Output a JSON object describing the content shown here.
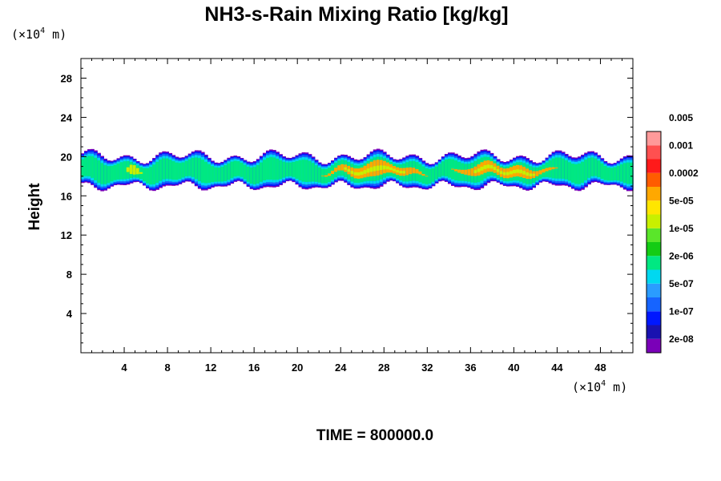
{
  "chart_data": {
    "type": "heatmap",
    "title": "NH3-s-Rain Mixing Ratio [kg/kg]",
    "xlabel": "",
    "ylabel": "Height",
    "x_unit": {
      "prefix": "(×10",
      "exp": "4",
      "suffix": " m)"
    },
    "y_unit": {
      "prefix": "(×10",
      "exp": "4",
      "suffix": " m)"
    },
    "xlim": [
      0,
      51
    ],
    "ylim": [
      0,
      30
    ],
    "x_ticks": [
      "4",
      "8",
      "12",
      "16",
      "20",
      "24",
      "28",
      "32",
      "36",
      "40",
      "44",
      "48"
    ],
    "x_tick_values": [
      4,
      8,
      12,
      16,
      20,
      24,
      28,
      32,
      36,
      40,
      44,
      48
    ],
    "y_ticks": [
      "4",
      "8",
      "12",
      "16",
      "20",
      "24",
      "28"
    ],
    "y_tick_values": [
      4,
      8,
      12,
      16,
      20,
      24,
      28
    ],
    "colorbar": {
      "levels": [
        "2e-08",
        "1e-07",
        "5e-07",
        "2e-06",
        "1e-05",
        "5e-05",
        "0.0002",
        "0.001",
        "0.005"
      ],
      "colors": [
        "#7a00b8",
        "#1a12b0",
        "#0018ff",
        "#1664ff",
        "#2a9cff",
        "#00d8f0",
        "#00e882",
        "#14cc14",
        "#5ae62a",
        "#c8f000",
        "#ffe600",
        "#ffa800",
        "#ff5c00",
        "#ff1a1a",
        "#ff5050",
        "#ff9a9a"
      ]
    },
    "layer": {
      "bottom_height": 17,
      "top_height": 20,
      "peak_regions": [
        {
          "x_start": 4,
          "x_end": 5.5,
          "level": "1e-05"
        },
        {
          "x_start": 22,
          "x_end": 32,
          "level": "5e-05"
        },
        {
          "x_start": 34,
          "x_end": 44,
          "level": "5e-05"
        }
      ]
    }
  },
  "footer": {
    "time_label": "TIME = 800000.0"
  }
}
